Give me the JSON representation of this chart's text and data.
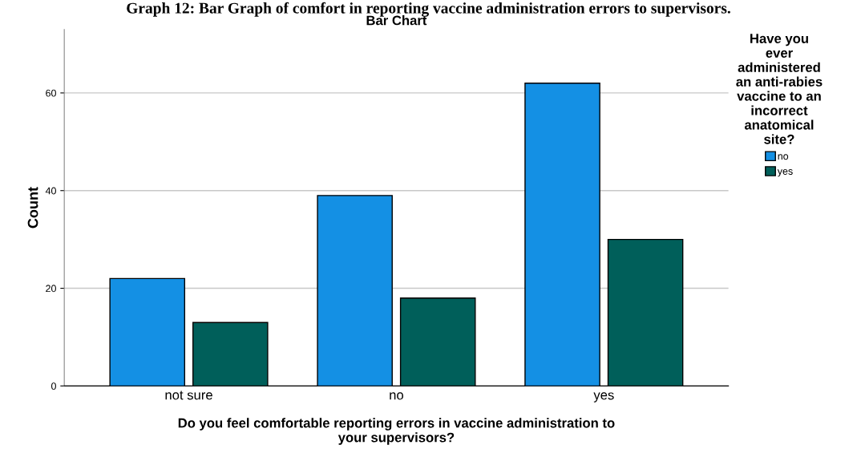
{
  "chart_data": {
    "type": "bar",
    "title": "Bar Chart",
    "annotations": [
      "Graph 12: Bar Graph of comfort in reporting vaccine administration errors to supervisors."
    ],
    "xlabel": "Do you feel comfortable reporting errors in vaccine administration to\nyour supervisors?",
    "ylabel": "Count",
    "legend_title": "Have you\never\nadministered\nan anti-rabies\nvaccine to an\nincorrect\nanatomical\nsite?",
    "categories": [
      "not sure",
      "no",
      "yes"
    ],
    "series": [
      {
        "name": "no",
        "color": "#1490e4",
        "values": [
          22,
          39,
          62
        ]
      },
      {
        "name": "yes",
        "color": "#005f5a",
        "values": [
          13,
          18,
          30
        ]
      }
    ],
    "ylim": [
      0,
      73
    ],
    "yticks": [
      0,
      20,
      40,
      60
    ],
    "grid": "y",
    "legend": "right"
  }
}
